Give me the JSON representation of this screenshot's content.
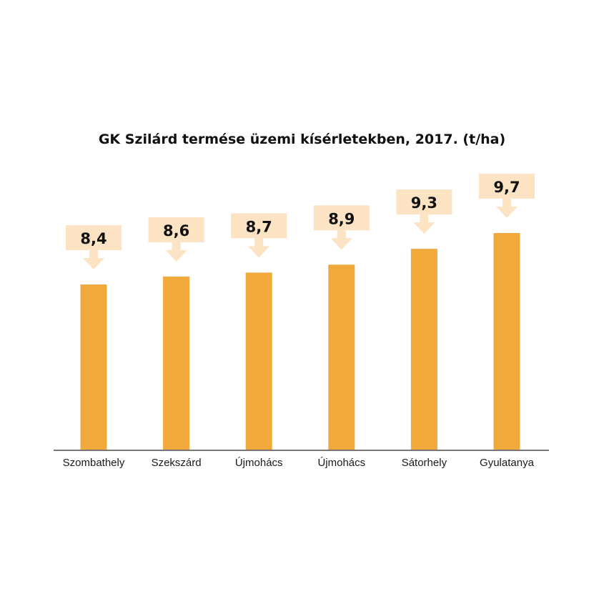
{
  "chart_data": {
    "type": "bar",
    "title": "GK Szilárd termése üzemi kísérletekben, 2017. (t/ha)",
    "categories": [
      "Szombathely",
      "Szekszárd",
      "Újmohács",
      "Újmohács",
      "Sátorhely",
      "Gyulatanya"
    ],
    "values": [
      8.4,
      8.6,
      8.7,
      8.9,
      9.3,
      9.7
    ],
    "value_labels": [
      "8,4",
      "8,6",
      "8,7",
      "8,9",
      "9,3",
      "9,7"
    ],
    "xlabel": "",
    "ylabel": "",
    "grid": false,
    "legend": "none",
    "colors": {
      "bar": "#F0A93A",
      "label_box": "#FBE3C4",
      "axis": "#777777"
    }
  }
}
